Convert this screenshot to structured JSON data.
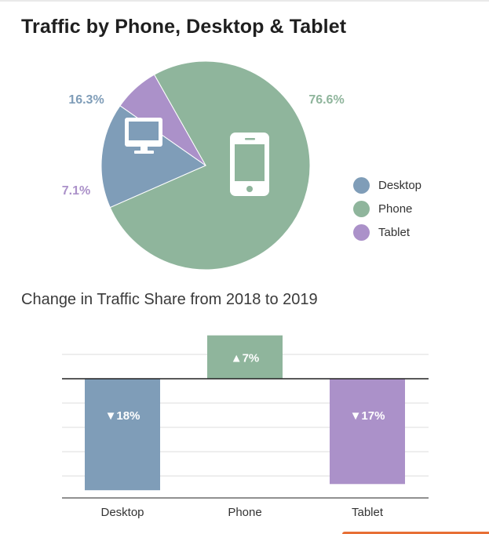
{
  "title": "Traffic by Phone, Desktop & Tablet",
  "subtitle": "Change in Traffic Share from 2018 to 2019",
  "colors": {
    "desktop": "#7f9db8",
    "phone": "#8fb59c",
    "tablet": "#ab91c9",
    "axis": "#222222",
    "grid": "#dddddd"
  },
  "legend": [
    {
      "label": "Desktop",
      "color": "#7f9db8"
    },
    {
      "label": "Phone",
      "color": "#8fb59c"
    },
    {
      "label": "Tablet",
      "color": "#ab91c9"
    }
  ],
  "chart_data": [
    {
      "type": "pie",
      "categories": [
        "Phone",
        "Desktop",
        "Tablet"
      ],
      "values": [
        76.6,
        16.3,
        7.1
      ],
      "labels": [
        "76.6%",
        "16.3%",
        "7.1%"
      ],
      "colors": [
        "#8fb59c",
        "#7f9db8",
        "#ab91c9"
      ],
      "icons": [
        "phone-icon",
        "monitor-icon",
        ""
      ]
    },
    {
      "type": "bar",
      "title": "Change in Traffic Share from 2018 to 2019",
      "categories": [
        "Desktop",
        "Phone",
        "Tablet"
      ],
      "values": [
        -18,
        7,
        -17
      ],
      "labels": [
        "▼18%",
        "▲7%",
        "▼17%"
      ],
      "colors": [
        "#7f9db8",
        "#8fb59c",
        "#ab91c9"
      ],
      "grid": true
    }
  ]
}
